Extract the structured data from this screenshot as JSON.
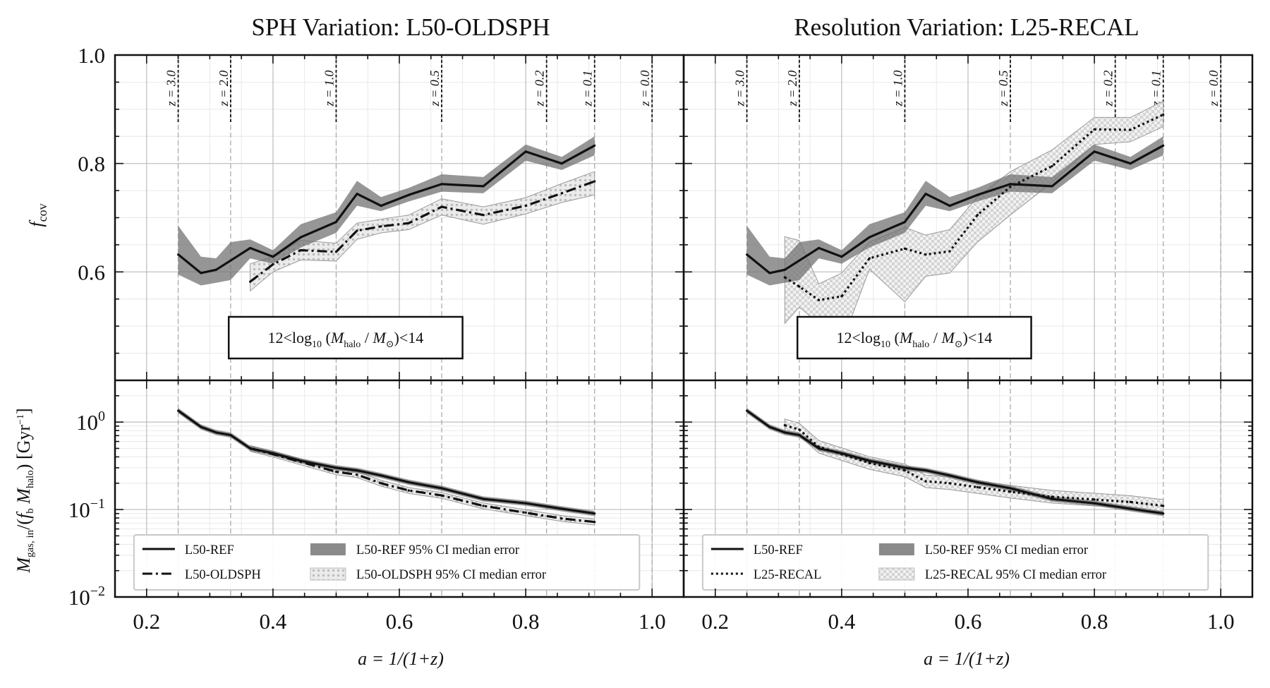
{
  "figure": {
    "xlabel": "a = 1/(1+z)",
    "ylabel_top": "f_cov",
    "ylabel_bottom": "M_gas, in / (f_b M_halo) [Gyr^-1]",
    "annotation": "12<log10 (Mhalo / M⊙)<14",
    "x_ticks": [
      "0.2",
      "0.4",
      "0.6",
      "0.8",
      "1.0"
    ],
    "top_y_ticks": [
      "0.6",
      "0.8",
      "1.0"
    ],
    "bottom_y_ticks": [
      "10^0",
      "10^-1",
      "10^-2"
    ],
    "redshift_lines": [
      {
        "z": 3.0,
        "a": 0.25,
        "label": "z = 3.0"
      },
      {
        "z": 2.0,
        "a": 0.333,
        "label": "z = 2.0"
      },
      {
        "z": 1.0,
        "a": 0.5,
        "label": "z = 1.0"
      },
      {
        "z": 0.5,
        "a": 0.667,
        "label": "z = 0.5"
      },
      {
        "z": 0.2,
        "a": 0.833,
        "label": "z = 0.2"
      },
      {
        "z": 0.1,
        "a": 0.909,
        "label": "z = 0.1"
      },
      {
        "z": 0.0,
        "a": 1.0,
        "label": "z = 0.0"
      }
    ],
    "colors": {
      "ref": "#111111",
      "ref_band": "#7f7f7f",
      "var_band": "#cfcfcf",
      "grid": "#bdbdbd"
    }
  },
  "chart_data": [
    {
      "type": "line",
      "title": "SPH Variation: L50-OLDSPH",
      "xlabel": "a = 1/(1+z)",
      "xlim": [
        0.15,
        1.05
      ],
      "top_panel": {
        "ylabel": "f_cov",
        "ylim": [
          0.4,
          1.0
        ],
        "series": [
          {
            "name": "L50-REF",
            "style": "solid",
            "x": [
              0.25,
              0.286,
              0.31,
              0.333,
              0.364,
              0.4,
              0.444,
              0.5,
              0.533,
              0.571,
              0.615,
              0.667,
              0.733,
              0.8,
              0.857,
              0.909
            ],
            "y": [
              0.632,
              0.598,
              0.604,
              0.621,
              0.644,
              0.628,
              0.664,
              0.692,
              0.744,
              0.722,
              0.742,
              0.762,
              0.758,
              0.822,
              0.8,
              0.833
            ],
            "lo": [
              0.595,
              0.575,
              0.58,
              0.585,
              0.625,
              0.615,
              0.645,
              0.672,
              0.722,
              0.712,
              0.73,
              0.748,
              0.745,
              0.805,
              0.788,
              0.815
            ],
            "hi": [
              0.685,
              0.628,
              0.625,
              0.655,
              0.66,
              0.64,
              0.688,
              0.71,
              0.768,
              0.738,
              0.755,
              0.78,
              0.775,
              0.835,
              0.812,
              0.85
            ]
          },
          {
            "name": "L50-OLDSPH",
            "style": "dashdot",
            "x": [
              0.364,
              0.4,
              0.444,
              0.5,
              0.533,
              0.571,
              0.615,
              0.667,
              0.733,
              0.8,
              0.857,
              0.909
            ],
            "y": [
              0.582,
              0.614,
              0.64,
              0.637,
              0.676,
              0.684,
              0.69,
              0.72,
              0.705,
              0.722,
              0.745,
              0.767
            ],
            "lo": [
              0.565,
              0.6,
              0.622,
              0.62,
              0.66,
              0.672,
              0.678,
              0.705,
              0.688,
              0.707,
              0.728,
              0.742
            ],
            "hi": [
              0.615,
              0.628,
              0.658,
              0.653,
              0.69,
              0.697,
              0.705,
              0.735,
              0.72,
              0.737,
              0.763,
              0.785
            ]
          }
        ]
      },
      "bottom_panel": {
        "ylabel": "M_gas, in / (f_b M_halo) [Gyr^-1]",
        "yscale": "log",
        "ylim": [
          0.01,
          3.0
        ],
        "series": [
          {
            "name": "L50-REF",
            "style": "solid",
            "x": [
              0.25,
              0.286,
              0.31,
              0.333,
              0.364,
              0.4,
              0.444,
              0.5,
              0.533,
              0.571,
              0.615,
              0.667,
              0.733,
              0.8,
              0.857,
              0.909
            ],
            "y": [
              1.35,
              0.88,
              0.76,
              0.71,
              0.5,
              0.44,
              0.36,
              0.3,
              0.28,
              0.245,
              0.205,
              0.175,
              0.132,
              0.118,
              0.102,
              0.09
            ]
          },
          {
            "name": "L50-OLDSPH",
            "style": "dashdot",
            "x": [
              0.364,
              0.4,
              0.444,
              0.5,
              0.533,
              0.571,
              0.615,
              0.667,
              0.733,
              0.8,
              0.857,
              0.909
            ],
            "y": [
              0.5,
              0.43,
              0.35,
              0.27,
              0.25,
              0.2,
              0.165,
              0.145,
              0.11,
              0.092,
              0.079,
              0.072
            ]
          }
        ]
      },
      "legend": {
        "placement": "lower-center",
        "entries": [
          "L50-REF",
          "L50-OLDSPH",
          "L50-REF 95% CI median error",
          "L50-OLDSPH 95% CI median error"
        ]
      }
    },
    {
      "type": "line",
      "title": "Resolution Variation: L25-RECAL",
      "xlabel": "a = 1/(1+z)",
      "xlim": [
        0.15,
        1.05
      ],
      "top_panel": {
        "ylabel": "f_cov",
        "ylim": [
          0.4,
          1.0
        ],
        "series": [
          {
            "name": "L50-REF",
            "style": "solid",
            "x": [
              0.25,
              0.286,
              0.31,
              0.333,
              0.364,
              0.4,
              0.444,
              0.5,
              0.533,
              0.571,
              0.615,
              0.667,
              0.733,
              0.8,
              0.857,
              0.909
            ],
            "y": [
              0.632,
              0.598,
              0.604,
              0.621,
              0.644,
              0.628,
              0.664,
              0.692,
              0.744,
              0.722,
              0.742,
              0.762,
              0.758,
              0.822,
              0.8,
              0.833
            ],
            "lo": [
              0.595,
              0.575,
              0.58,
              0.585,
              0.625,
              0.615,
              0.645,
              0.672,
              0.722,
              0.712,
              0.73,
              0.748,
              0.745,
              0.805,
              0.788,
              0.815
            ],
            "hi": [
              0.685,
              0.628,
              0.625,
              0.655,
              0.66,
              0.64,
              0.688,
              0.71,
              0.768,
              0.738,
              0.755,
              0.78,
              0.775,
              0.835,
              0.812,
              0.85
            ]
          },
          {
            "name": "L25-RECAL",
            "style": "dotted",
            "x": [
              0.31,
              0.333,
              0.364,
              0.4,
              0.444,
              0.5,
              0.533,
              0.571,
              0.615,
              0.667,
              0.733,
              0.8,
              0.857,
              0.909
            ],
            "y": [
              0.59,
              0.573,
              0.548,
              0.555,
              0.625,
              0.643,
              0.632,
              0.638,
              0.705,
              0.757,
              0.795,
              0.863,
              0.862,
              0.89
            ],
            "lo": [
              0.505,
              0.535,
              0.505,
              0.468,
              0.605,
              0.545,
              0.592,
              0.598,
              0.655,
              0.705,
              0.765,
              0.835,
              0.84,
              0.868
            ],
            "hi": [
              0.665,
              0.658,
              0.578,
              0.598,
              0.655,
              0.682,
              0.668,
              0.678,
              0.738,
              0.785,
              0.825,
              0.885,
              0.885,
              0.915
            ]
          }
        ]
      },
      "bottom_panel": {
        "ylabel": "M_gas, in / (f_b M_halo) [Gyr^-1]",
        "yscale": "log",
        "ylim": [
          0.01,
          3.0
        ],
        "series": [
          {
            "name": "L50-REF",
            "style": "solid",
            "x": [
              0.25,
              0.286,
              0.31,
              0.333,
              0.364,
              0.4,
              0.444,
              0.5,
              0.533,
              0.571,
              0.615,
              0.667,
              0.733,
              0.8,
              0.857,
              0.909
            ],
            "y": [
              1.35,
              0.88,
              0.76,
              0.71,
              0.5,
              0.44,
              0.36,
              0.3,
              0.28,
              0.245,
              0.205,
              0.175,
              0.132,
              0.118,
              0.102,
              0.09
            ]
          },
          {
            "name": "L25-RECAL",
            "style": "dotted",
            "x": [
              0.31,
              0.333,
              0.364,
              0.4,
              0.444,
              0.5,
              0.533,
              0.571,
              0.615,
              0.667,
              0.733,
              0.8,
              0.857,
              0.909
            ],
            "y": [
              0.92,
              0.82,
              0.52,
              0.43,
              0.34,
              0.28,
              0.21,
              0.2,
              0.18,
              0.16,
              0.14,
              0.13,
              0.122,
              0.11
            ]
          }
        ]
      },
      "legend": {
        "placement": "lower-center",
        "entries": [
          "L50-REF",
          "L25-RECAL",
          "L50-REF 95% CI median error",
          "L25-RECAL 95% CI median error"
        ]
      }
    }
  ]
}
